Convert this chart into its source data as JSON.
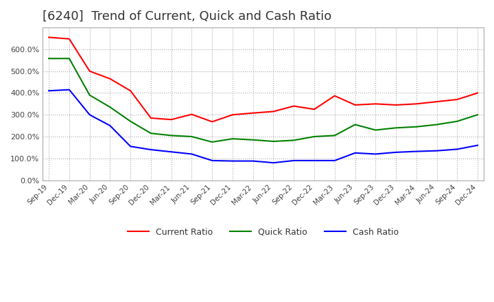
{
  "title": "[6240]  Trend of Current, Quick and Cash Ratio",
  "ylim": [
    0,
    700
  ],
  "yticks": [
    0,
    100,
    200,
    300,
    400,
    500,
    600
  ],
  "ytick_labels": [
    "0.0%",
    "100.0%",
    "200.0%",
    "300.0%",
    "400.0%",
    "500.0%",
    "600.0%"
  ],
  "x_labels": [
    "Sep-19",
    "Dec-19",
    "Mar-20",
    "Jun-20",
    "Sep-20",
    "Dec-20",
    "Mar-21",
    "Jun-21",
    "Sep-21",
    "Dec-21",
    "Mar-22",
    "Jun-22",
    "Sep-22",
    "Dec-22",
    "Mar-23",
    "Jun-23",
    "Sep-23",
    "Dec-23",
    "Mar-24",
    "Jun-24",
    "Sep-24",
    "Dec-24"
  ],
  "current_ratio": [
    655,
    648,
    500,
    465,
    410,
    285,
    278,
    302,
    268,
    300,
    308,
    315,
    340,
    325,
    387,
    345,
    350,
    345,
    350,
    360,
    370,
    400
  ],
  "quick_ratio": [
    558,
    558,
    390,
    335,
    270,
    215,
    205,
    200,
    175,
    190,
    185,
    178,
    183,
    200,
    205,
    255,
    230,
    240,
    245,
    255,
    270,
    300
  ],
  "cash_ratio": [
    410,
    415,
    300,
    250,
    155,
    140,
    130,
    120,
    90,
    88,
    88,
    80,
    90,
    90,
    90,
    125,
    120,
    128,
    132,
    135,
    142,
    160
  ],
  "current_color": "#FF0000",
  "quick_color": "#008000",
  "cash_color": "#0000FF",
  "background_color": "#FFFFFF",
  "grid_color": "#AAAAAA",
  "title_fontsize": 13,
  "legend_labels": [
    "Current Ratio",
    "Quick Ratio",
    "Cash Ratio"
  ]
}
